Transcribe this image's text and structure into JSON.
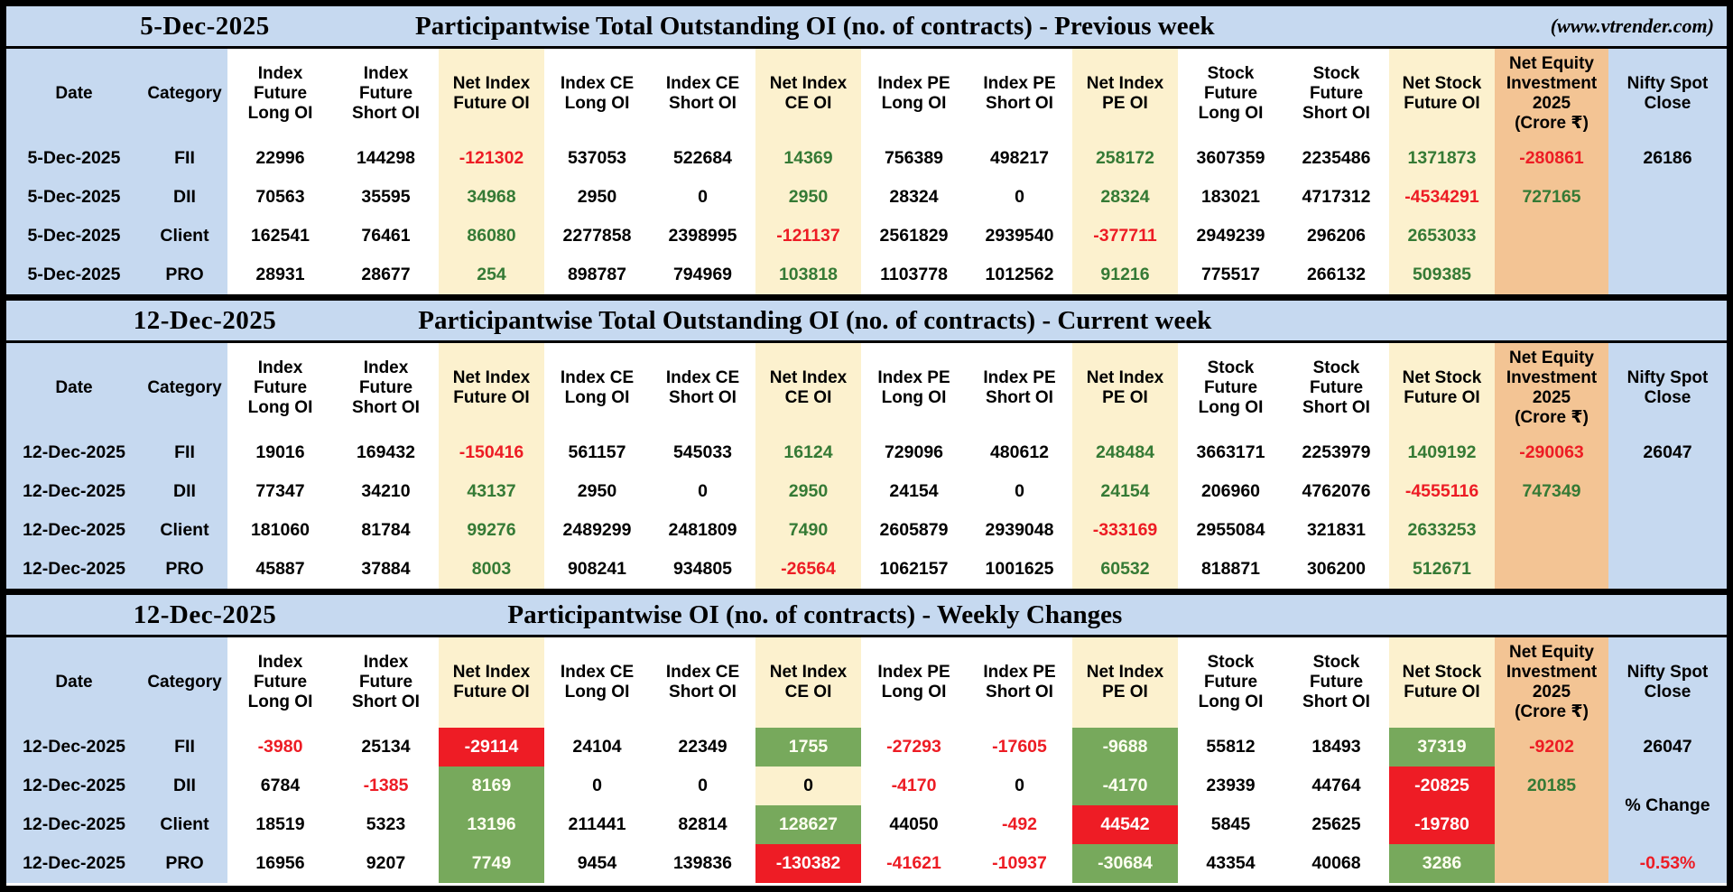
{
  "site_note": "(www.vtrender.com)",
  "colors": {
    "band_blue": "#c6d9f0",
    "net_col_cream": "#fcf1ce",
    "equity_col_orange": "#f3c494",
    "positive_bg_green": "#77a95c",
    "negative_bg_red": "#ee1c25",
    "negative_text_red": "#ed1c24",
    "positive_text_green": "#357a35"
  },
  "column_headers_display": [
    "Date",
    "Category",
    "Index\nFuture\nLong OI",
    "Index\nFuture\nShort OI",
    "Net Index\nFuture OI",
    "Index CE\nLong OI",
    "Index CE\nShort OI",
    "Net Index\nCE OI",
    "Index PE\nLong OI",
    "Index PE\nShort OI",
    "Net Index\nPE OI",
    "Stock\nFuture\nLong OI",
    "Stock\nFuture\nShort OI",
    "Net Stock\nFuture OI",
    "Net Equity\nInvestment\n2025\n(Crore ₹)",
    "Nifty Spot\nClose"
  ],
  "chart_data": [
    {
      "type": "table",
      "date_label": "5-Dec-2025",
      "title": "Participantwise Total Outstanding OI (no. of contracts) - Previous week",
      "note": "(www.vtrender.com)",
      "columns": [
        "Date",
        "Category",
        "Index Future Long OI",
        "Index Future Short OI",
        "Net Index Future OI",
        "Index CE Long OI",
        "Index CE Short OI",
        "Net Index CE OI",
        "Index PE Long OI",
        "Index PE Short OI",
        "Net Index PE OI",
        "Stock Future Long OI",
        "Stock Future Short OI",
        "Net Stock Future OI",
        "Net Equity Investment 2025 (Crore ₹)",
        "Nifty Spot Close"
      ],
      "nifty": {
        "fii": "26186"
      },
      "rows": [
        {
          "date": "5-Dec-2025",
          "category": "FII",
          "cells": [
            [
              "22996",
              "k"
            ],
            [
              "144298",
              "k"
            ],
            [
              "-121302",
              "r"
            ],
            [
              "537053",
              "k"
            ],
            [
              "522684",
              "k"
            ],
            [
              "14369",
              "g"
            ],
            [
              "756389",
              "k"
            ],
            [
              "498217",
              "k"
            ],
            [
              "258172",
              "g"
            ],
            [
              "3607359",
              "k"
            ],
            [
              "2235486",
              "k"
            ],
            [
              "1371873",
              "g"
            ],
            [
              "-280861",
              "r"
            ]
          ]
        },
        {
          "date": "5-Dec-2025",
          "category": "DII",
          "cells": [
            [
              "70563",
              "k"
            ],
            [
              "35595",
              "k"
            ],
            [
              "34968",
              "g"
            ],
            [
              "2950",
              "k"
            ],
            [
              "0",
              "k"
            ],
            [
              "2950",
              "g"
            ],
            [
              "28324",
              "k"
            ],
            [
              "0",
              "k"
            ],
            [
              "28324",
              "g"
            ],
            [
              "183021",
              "k"
            ],
            [
              "4717312",
              "k"
            ],
            [
              "-4534291",
              "r"
            ],
            [
              "727165",
              "g"
            ]
          ]
        },
        {
          "date": "5-Dec-2025",
          "category": "Client",
          "cells": [
            [
              "162541",
              "k"
            ],
            [
              "76461",
              "k"
            ],
            [
              "86080",
              "g"
            ],
            [
              "2277858",
              "k"
            ],
            [
              "2398995",
              "k"
            ],
            [
              "-121137",
              "r"
            ],
            [
              "2561829",
              "k"
            ],
            [
              "2939540",
              "k"
            ],
            [
              "-377711",
              "r"
            ],
            [
              "2949239",
              "k"
            ],
            [
              "296206",
              "k"
            ],
            [
              "2653033",
              "g"
            ],
            [
              "",
              ""
            ]
          ]
        },
        {
          "date": "5-Dec-2025",
          "category": "PRO",
          "cells": [
            [
              "28931",
              "k"
            ],
            [
              "28677",
              "k"
            ],
            [
              "254",
              "g"
            ],
            [
              "898787",
              "k"
            ],
            [
              "794969",
              "k"
            ],
            [
              "103818",
              "g"
            ],
            [
              "1103778",
              "k"
            ],
            [
              "1012562",
              "k"
            ],
            [
              "91216",
              "g"
            ],
            [
              "775517",
              "k"
            ],
            [
              "266132",
              "k"
            ],
            [
              "509385",
              "g"
            ],
            [
              "",
              ""
            ]
          ]
        }
      ]
    },
    {
      "type": "table",
      "date_label": "12-Dec-2025",
      "title": "Participantwise Total Outstanding OI (no. of contracts) - Current week",
      "note": "",
      "columns": [
        "Date",
        "Category",
        "Index Future Long OI",
        "Index Future Short OI",
        "Net Index Future OI",
        "Index CE Long OI",
        "Index CE Short OI",
        "Net Index CE OI",
        "Index PE Long OI",
        "Index PE Short OI",
        "Net Index PE OI",
        "Stock Future Long OI",
        "Stock Future Short OI",
        "Net Stock Future OI",
        "Net Equity Investment 2025 (Crore ₹)",
        "Nifty Spot Close"
      ],
      "nifty": {
        "fii": "26047"
      },
      "rows": [
        {
          "date": "12-Dec-2025",
          "category": "FII",
          "cells": [
            [
              "19016",
              "k"
            ],
            [
              "169432",
              "k"
            ],
            [
              "-150416",
              "r"
            ],
            [
              "561157",
              "k"
            ],
            [
              "545033",
              "k"
            ],
            [
              "16124",
              "g"
            ],
            [
              "729096",
              "k"
            ],
            [
              "480612",
              "k"
            ],
            [
              "248484",
              "g"
            ],
            [
              "3663171",
              "k"
            ],
            [
              "2253979",
              "k"
            ],
            [
              "1409192",
              "g"
            ],
            [
              "-290063",
              "r"
            ]
          ]
        },
        {
          "date": "12-Dec-2025",
          "category": "DII",
          "cells": [
            [
              "77347",
              "k"
            ],
            [
              "34210",
              "k"
            ],
            [
              "43137",
              "g"
            ],
            [
              "2950",
              "k"
            ],
            [
              "0",
              "k"
            ],
            [
              "2950",
              "g"
            ],
            [
              "24154",
              "k"
            ],
            [
              "0",
              "k"
            ],
            [
              "24154",
              "g"
            ],
            [
              "206960",
              "k"
            ],
            [
              "4762076",
              "k"
            ],
            [
              "-4555116",
              "r"
            ],
            [
              "747349",
              "g"
            ]
          ]
        },
        {
          "date": "12-Dec-2025",
          "category": "Client",
          "cells": [
            [
              "181060",
              "k"
            ],
            [
              "81784",
              "k"
            ],
            [
              "99276",
              "g"
            ],
            [
              "2489299",
              "k"
            ],
            [
              "2481809",
              "k"
            ],
            [
              "7490",
              "g"
            ],
            [
              "2605879",
              "k"
            ],
            [
              "2939048",
              "k"
            ],
            [
              "-333169",
              "r"
            ],
            [
              "2955084",
              "k"
            ],
            [
              "321831",
              "k"
            ],
            [
              "2633253",
              "g"
            ],
            [
              "",
              ""
            ]
          ]
        },
        {
          "date": "12-Dec-2025",
          "category": "PRO",
          "cells": [
            [
              "45887",
              "k"
            ],
            [
              "37884",
              "k"
            ],
            [
              "8003",
              "g"
            ],
            [
              "908241",
              "k"
            ],
            [
              "934805",
              "k"
            ],
            [
              "-26564",
              "r"
            ],
            [
              "1062157",
              "k"
            ],
            [
              "1001625",
              "k"
            ],
            [
              "60532",
              "g"
            ],
            [
              "818871",
              "k"
            ],
            [
              "306200",
              "k"
            ],
            [
              "512671",
              "g"
            ],
            [
              "",
              ""
            ]
          ]
        }
      ]
    },
    {
      "type": "table",
      "date_label": "12-Dec-2025",
      "title": "Participantwise OI (no. of contracts) - Weekly Changes",
      "note": "",
      "columns": [
        "Date",
        "Category",
        "Index Future Long OI",
        "Index Future Short OI",
        "Net Index Future OI",
        "Index CE Long OI",
        "Index CE Short OI",
        "Net Index CE OI",
        "Index PE Long OI",
        "Index PE Short OI",
        "Net Index PE OI",
        "Stock Future Long OI",
        "Stock Future Short OI",
        "Net Stock Future OI",
        "Net Equity Investment 2025 (Crore ₹)",
        "Nifty Spot Close"
      ],
      "nifty": {
        "fii": "26047",
        "mid": "% Change",
        "pro": "-0.53%"
      },
      "rows": [
        {
          "date": "12-Dec-2025",
          "category": "FII",
          "cells": [
            [
              "-3980",
              "r"
            ],
            [
              "25134",
              "k"
            ],
            [
              "-29114",
              "bgR"
            ],
            [
              "24104",
              "k"
            ],
            [
              "22349",
              "k"
            ],
            [
              "1755",
              "bgG"
            ],
            [
              "-27293",
              "r"
            ],
            [
              "-17605",
              "r"
            ],
            [
              "-9688",
              "bgG"
            ],
            [
              "55812",
              "k"
            ],
            [
              "18493",
              "k"
            ],
            [
              "37319",
              "bgG"
            ],
            [
              "-9202",
              "r"
            ]
          ]
        },
        {
          "date": "12-Dec-2025",
          "category": "DII",
          "cells": [
            [
              "6784",
              "k"
            ],
            [
              "-1385",
              "r"
            ],
            [
              "8169",
              "bgG"
            ],
            [
              "0",
              "k"
            ],
            [
              "0",
              "k"
            ],
            [
              "0",
              "bg0"
            ],
            [
              "-4170",
              "r"
            ],
            [
              "0",
              "k"
            ],
            [
              "-4170",
              "bgG"
            ],
            [
              "23939",
              "k"
            ],
            [
              "44764",
              "k"
            ],
            [
              "-20825",
              "bgR"
            ],
            [
              "20185",
              "g"
            ]
          ]
        },
        {
          "date": "12-Dec-2025",
          "category": "Client",
          "cells": [
            [
              "18519",
              "k"
            ],
            [
              "5323",
              "k"
            ],
            [
              "13196",
              "bgG"
            ],
            [
              "211441",
              "k"
            ],
            [
              "82814",
              "k"
            ],
            [
              "128627",
              "bgG"
            ],
            [
              "44050",
              "k"
            ],
            [
              "-492",
              "r"
            ],
            [
              "44542",
              "bgR"
            ],
            [
              "5845",
              "k"
            ],
            [
              "25625",
              "k"
            ],
            [
              "-19780",
              "bgR"
            ],
            [
              "",
              ""
            ]
          ]
        },
        {
          "date": "12-Dec-2025",
          "category": "PRO",
          "cells": [
            [
              "16956",
              "k"
            ],
            [
              "9207",
              "k"
            ],
            [
              "7749",
              "bgG"
            ],
            [
              "9454",
              "k"
            ],
            [
              "139836",
              "k"
            ],
            [
              "-130382",
              "bgR"
            ],
            [
              "-41621",
              "r"
            ],
            [
              "-10937",
              "r"
            ],
            [
              "-30684",
              "bgG"
            ],
            [
              "43354",
              "k"
            ],
            [
              "40068",
              "k"
            ],
            [
              "3286",
              "bgG"
            ],
            [
              "",
              ""
            ]
          ]
        }
      ]
    }
  ]
}
